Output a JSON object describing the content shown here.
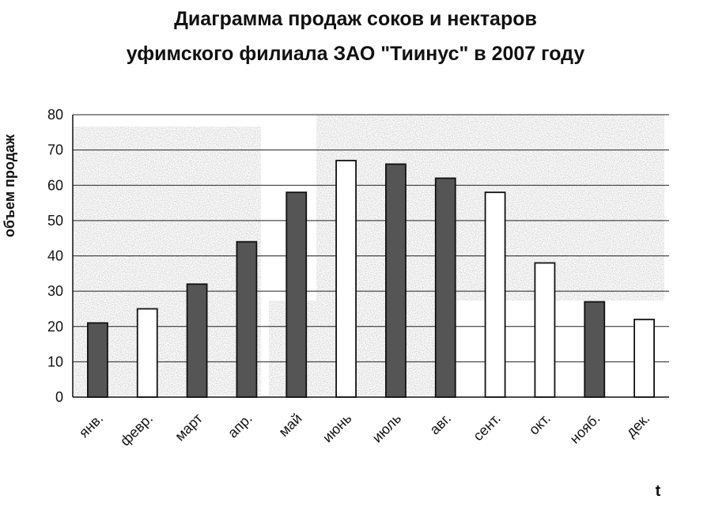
{
  "chart_data": {
    "type": "bar",
    "title_line1": "Диаграмма продаж соков и нектаров",
    "title_line2": "уфимского филиала ЗАО \"Тиинус\" в 2007 году",
    "ylabel": "объем продаж",
    "xlabel": "t",
    "ylim": [
      0,
      80
    ],
    "yticks": [
      "0",
      "10",
      "20",
      "30",
      "40",
      "50",
      "60",
      "70",
      "80"
    ],
    "grid": true,
    "categories": [
      "янв.",
      "февр.",
      "март",
      "апр.",
      "май",
      "июнь",
      "июль",
      "авг.",
      "сент.",
      "окт.",
      "нояб.",
      "дек."
    ],
    "values": [
      21,
      25,
      32,
      44,
      58,
      67,
      66,
      62,
      58,
      38,
      27,
      22
    ],
    "bar_fills": [
      "#555555",
      "#ffffff",
      "#555555",
      "#555555",
      "#555555",
      "#ffffff",
      "#555555",
      "#555555",
      "#ffffff",
      "#ffffff",
      "#555555",
      "#ffffff"
    ]
  }
}
